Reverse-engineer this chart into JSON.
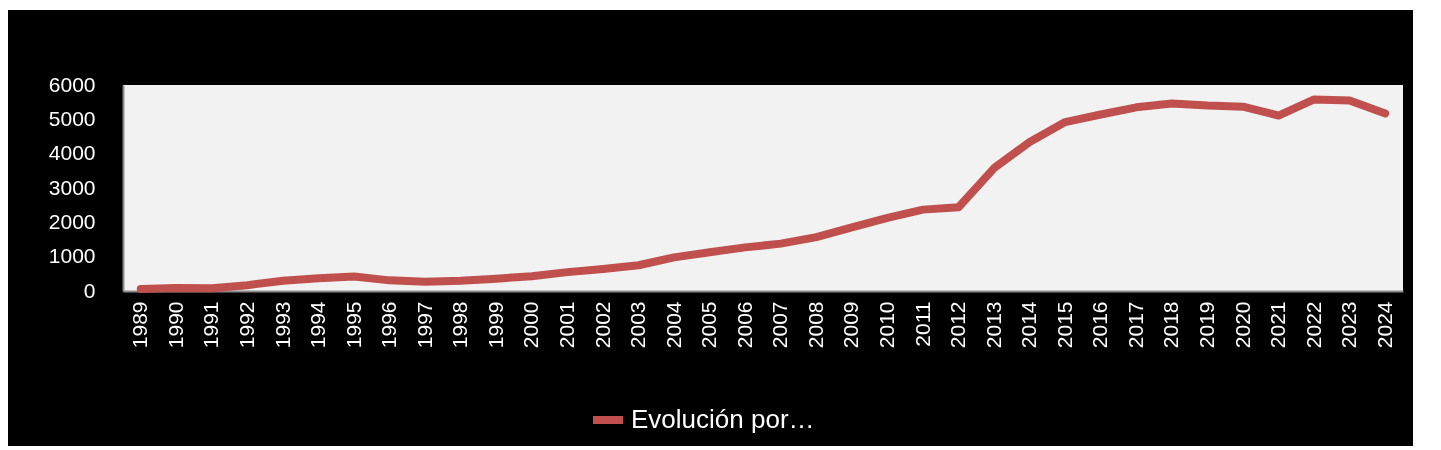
{
  "chart_data": {
    "type": "line",
    "categories": [
      "1989",
      "1990",
      "1991",
      "1992",
      "1993",
      "1994",
      "1995",
      "1996",
      "1997",
      "1998",
      "1999",
      "2000",
      "2001",
      "2002",
      "2003",
      "2004",
      "2005",
      "2006",
      "2007",
      "2008",
      "2009",
      "2010",
      "2011",
      "2012",
      "2013",
      "2014",
      "2015",
      "2016",
      "2017",
      "2018",
      "2019",
      "2020",
      "2021",
      "2022",
      "2023",
      "2024"
    ],
    "series": [
      {
        "name": "Evolución por…",
        "color": "#c0504d",
        "values": [
          60,
          90,
          80,
          170,
          300,
          370,
          420,
          310,
          270,
          300,
          360,
          430,
          550,
          640,
          750,
          980,
          1130,
          1270,
          1380,
          1570,
          1850,
          2130,
          2370,
          2440,
          3580,
          4340,
          4920,
          5140,
          5350,
          5460,
          5400,
          5370,
          5110,
          5580,
          5550,
          5170
        ]
      }
    ],
    "ylim": [
      0,
      6000
    ],
    "yticks": [
      0,
      1000,
      2000,
      3000,
      4000,
      5000,
      6000
    ],
    "grid": false,
    "legend": "bottom",
    "marker": "none",
    "line_style": "solid"
  }
}
